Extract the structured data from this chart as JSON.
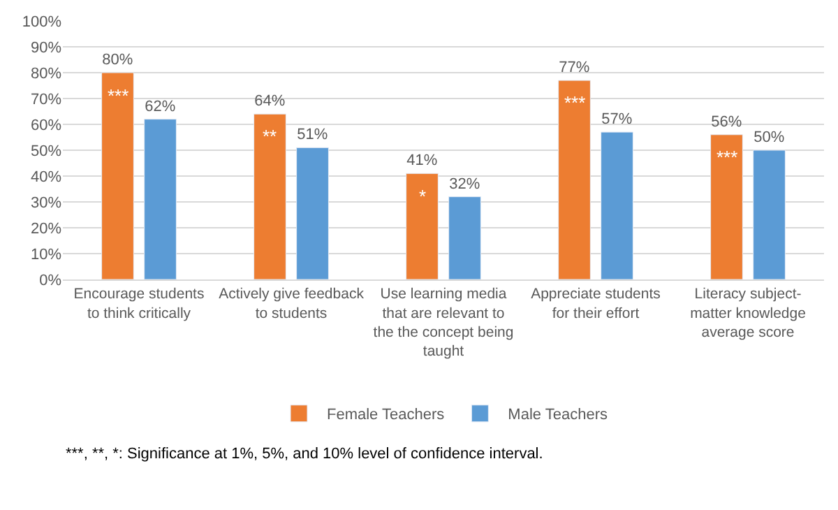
{
  "chart_data": {
    "type": "bar",
    "categories": [
      "Encourage students\nto think critically",
      "Actively give feedback\nto students",
      "Use learning media\nthat are relevant to\nthe the concept being\ntaught",
      "Appreciate students\nfor their effort",
      "Literacy subject-\nmatter knowledge\naverage score"
    ],
    "series": [
      {
        "name": "Female Teachers",
        "color": "#ed7d31",
        "values": [
          80,
          64,
          41,
          77,
          56
        ],
        "value_labels": [
          "80%",
          "64%",
          "41%",
          "77%",
          "56%"
        ]
      },
      {
        "name": "Male Teachers",
        "color": "#5b9bd5",
        "values": [
          62,
          51,
          32,
          57,
          50
        ],
        "value_labels": [
          "62%",
          "51%",
          "32%",
          "57%",
          "50%"
        ]
      }
    ],
    "ylim": [
      0,
      100
    ],
    "yticks": [
      {
        "value": 0,
        "label": "0%"
      },
      {
        "value": 10,
        "label": "10%"
      },
      {
        "value": 20,
        "label": "20%"
      },
      {
        "value": 30,
        "label": "30%"
      },
      {
        "value": 40,
        "label": "40%"
      },
      {
        "value": 50,
        "label": "50%"
      },
      {
        "value": 60,
        "label": "60%"
      },
      {
        "value": 70,
        "label": "70%"
      },
      {
        "value": 80,
        "label": "80%"
      },
      {
        "value": 90,
        "label": "90%"
      },
      {
        "value": 100,
        "label": "100%"
      }
    ],
    "grid": "y",
    "legend": "bottom",
    "annotations": [
      "***",
      "**",
      "*",
      "***",
      "***",
      "***, **, *: Significance at 1%, 5%, and 10% level of confidence interval."
    ]
  }
}
